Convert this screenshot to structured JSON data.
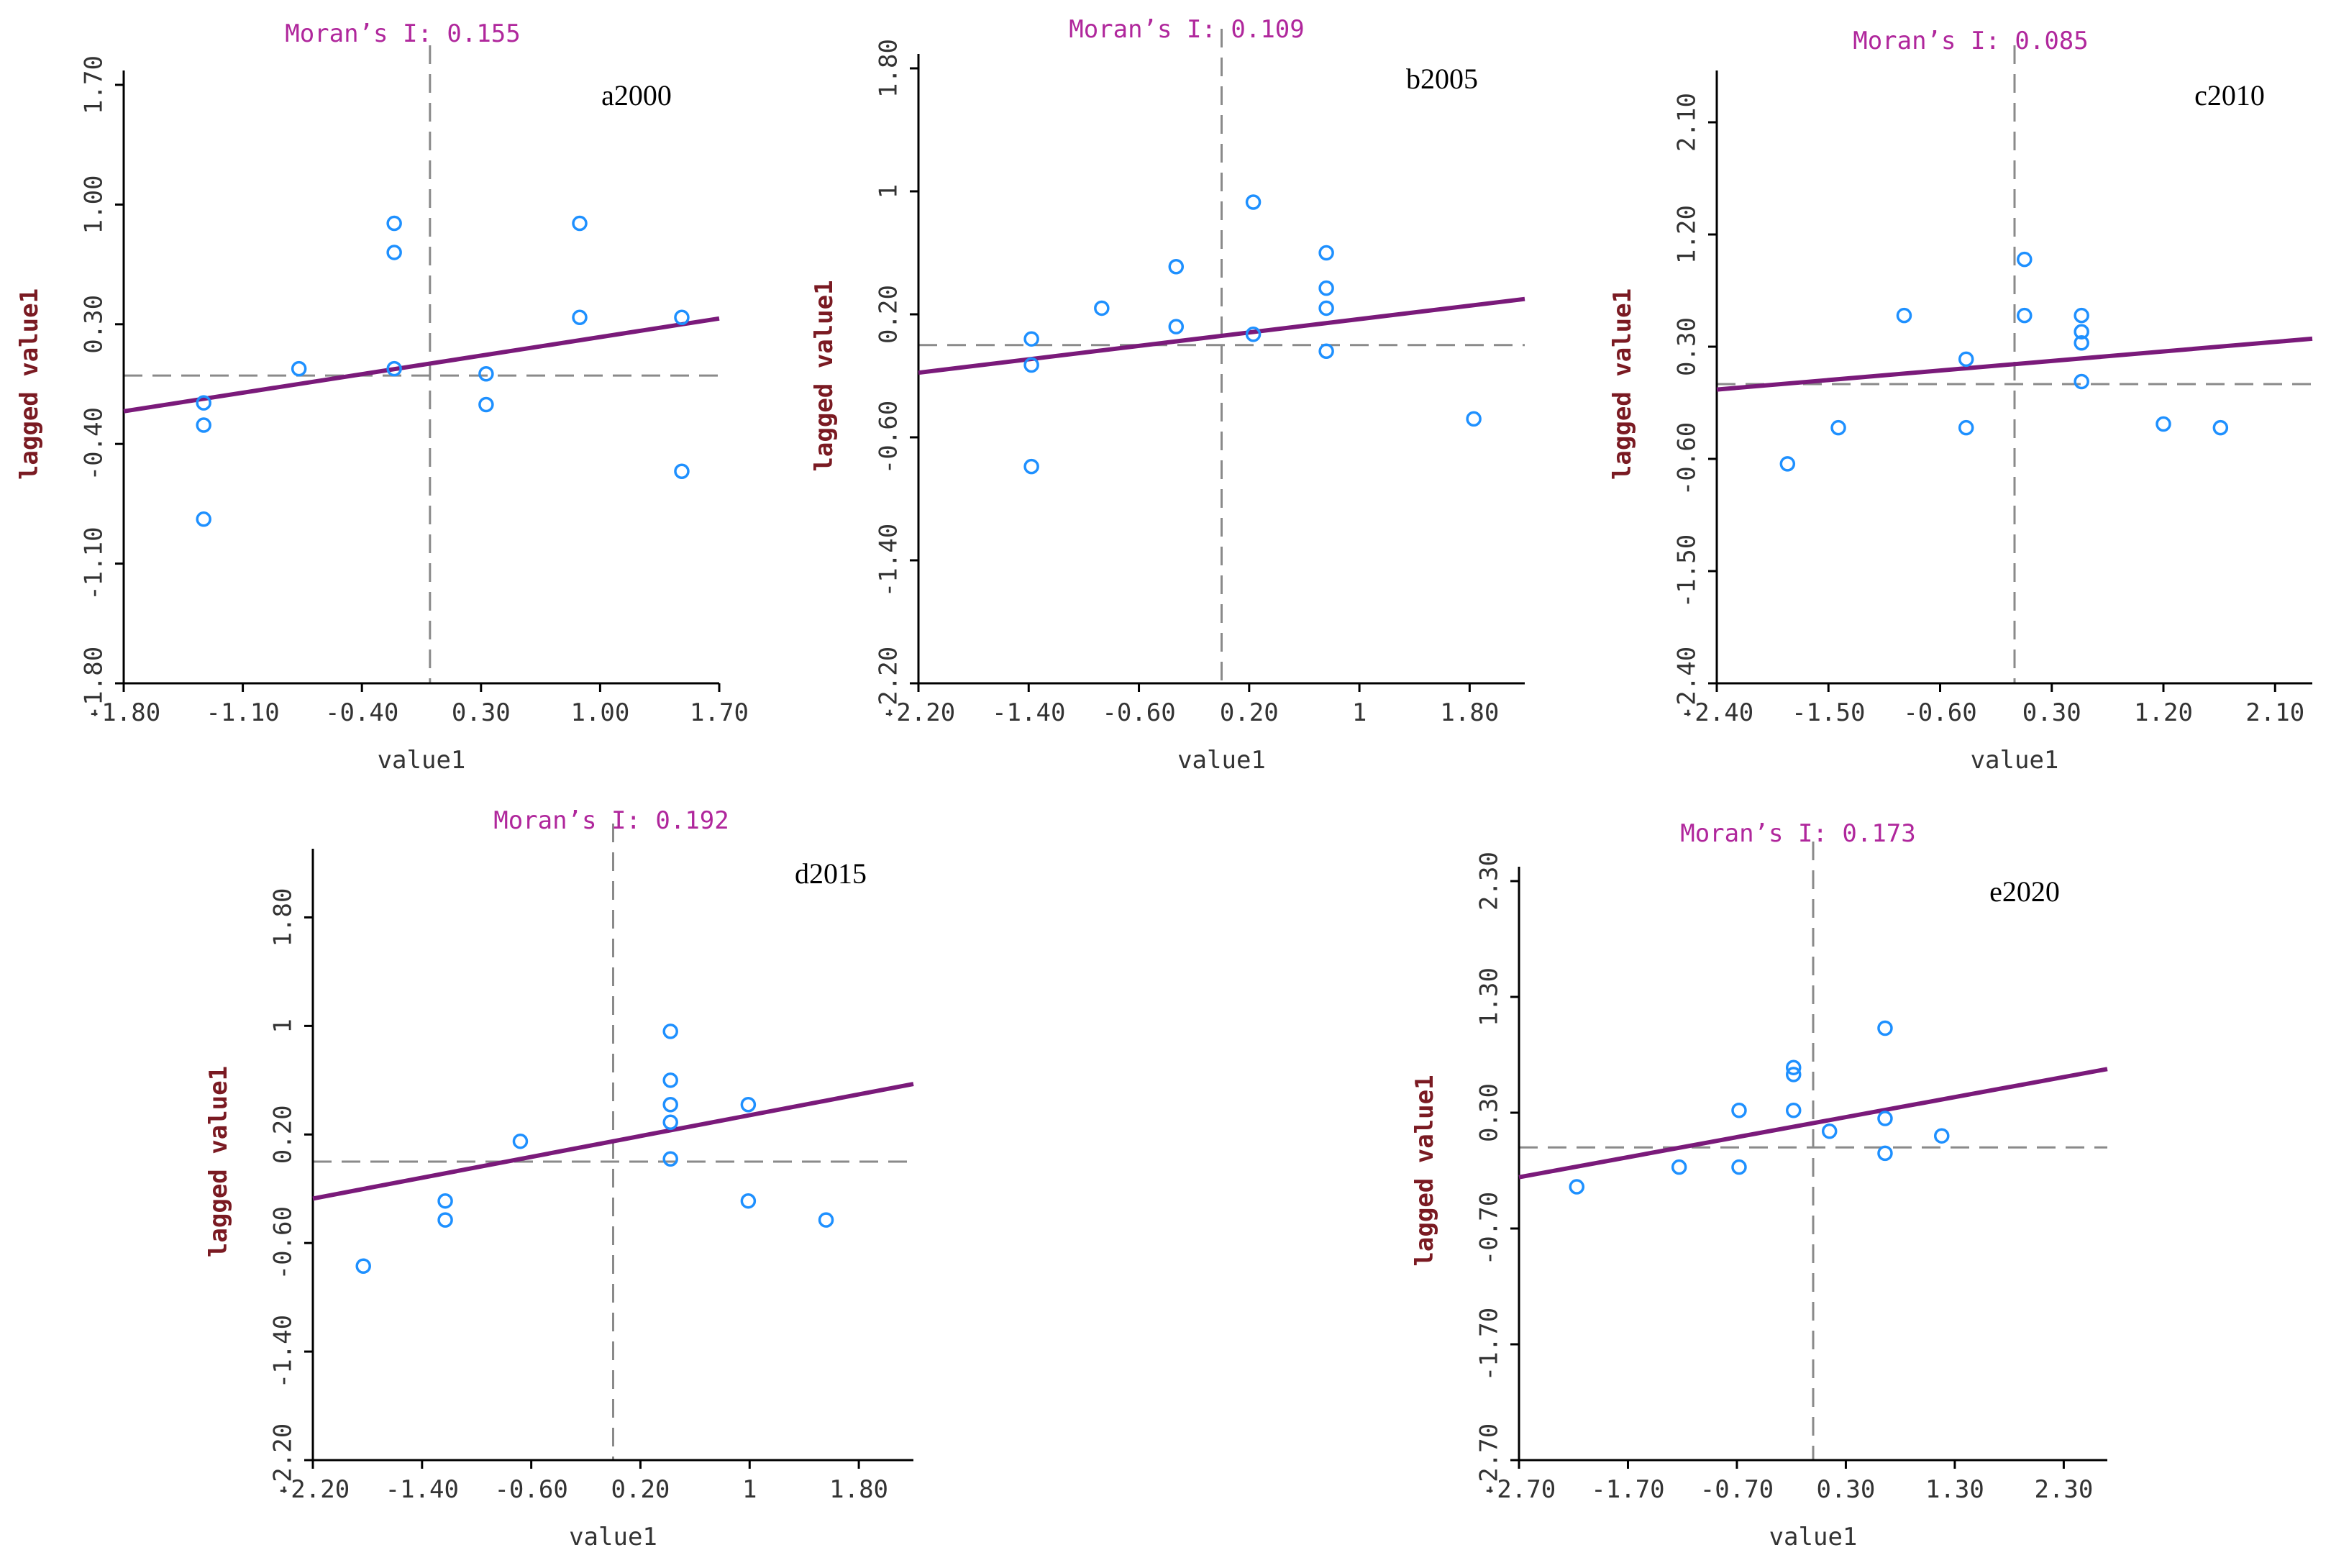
{
  "colors": {
    "point": "#1e90ff",
    "regression": "#7a1a7a",
    "moran": "#b0279c",
    "axis": "#000000",
    "guide": "#8a8a8a",
    "ylabel": "#7a1a22",
    "text": "#333333"
  },
  "chart_data": [
    {
      "type": "scatter",
      "label": "a2000",
      "moran": "Moran’s I: 0.155",
      "xlabel": "value1",
      "ylabel": "lagged value1",
      "xlim": [
        -1.8,
        1.7
      ],
      "ylim": [
        -1.8,
        1.7
      ],
      "xticks": [
        -1.8,
        -1.1,
        -0.4,
        0.3,
        1.0,
        1.7
      ],
      "xtick_labels": [
        "-1.80",
        "-1.10",
        "-0.40",
        "0.30",
        "1.00",
        "1.70"
      ],
      "yticks": [
        -1.8,
        -1.1,
        -0.4,
        0.3,
        1.0,
        1.7
      ],
      "ytick_labels": [
        "-1.80",
        "-1.10",
        "-0.40",
        "0.30",
        "1.00",
        "1.70"
      ],
      "x": [
        -1.33,
        -1.33,
        -1.33,
        -0.77,
        -0.21,
        -0.21,
        -0.21,
        0.33,
        0.33,
        0.88,
        0.88,
        1.48,
        1.48
      ],
      "y": [
        -0.16,
        -0.29,
        -0.84,
        0.04,
        0.89,
        0.72,
        0.04,
        0.01,
        -0.17,
        0.89,
        0.34,
        0.34,
        -0.56
      ],
      "fit_intercept": 0.07,
      "fit_slope": 0.155
    },
    {
      "type": "scatter",
      "label": "b2005",
      "moran": "Moran’s I: 0.109",
      "xlabel": "value1",
      "ylabel": "lagged value1",
      "xlim": [
        -2.2,
        2.2
      ],
      "ylim": [
        -2.2,
        1.8
      ],
      "xticks": [
        -2.2,
        -1.4,
        -0.6,
        0.2,
        1.0,
        1.8
      ],
      "xtick_labels": [
        "-2.20",
        "-1.40",
        "-0.60",
        "0.20",
        "1",
        "1.80"
      ],
      "yticks": [
        -2.2,
        -1.4,
        -0.6,
        0.2,
        1.0,
        1.8
      ],
      "ytick_labels": [
        "-2.20",
        "-1.40",
        "-0.60",
        "0.20",
        "1",
        "1.80"
      ],
      "x": [
        -1.38,
        -1.38,
        -1.38,
        -0.87,
        -0.33,
        -0.33,
        0.23,
        0.23,
        0.76,
        0.76,
        0.76,
        0.76,
        1.83
      ],
      "y": [
        0.04,
        -0.13,
        -0.79,
        0.24,
        0.51,
        0.12,
        0.93,
        0.07,
        0.6,
        0.37,
        0.24,
        -0.04,
        -0.48
      ],
      "fit_intercept": 0.06,
      "fit_slope": 0.109
    },
    {
      "type": "scatter",
      "label": "c2010",
      "moran": "Moran’s I: 0.085",
      "xlabel": "value1",
      "ylabel": "lagged value1",
      "xlim": [
        -2.4,
        2.4
      ],
      "ylim": [
        -2.4,
        2.4
      ],
      "xticks": [
        -2.4,
        -1.5,
        -0.6,
        0.3,
        1.2,
        2.1
      ],
      "xtick_labels": [
        "-2.40",
        "-1.50",
        "-0.60",
        "0.30",
        "1.20",
        "2.10"
      ],
      "yticks": [
        -2.4,
        -1.5,
        -0.6,
        0.3,
        1.2,
        2.1
      ],
      "ytick_labels": [
        "-2.40",
        "-1.50",
        "-0.60",
        "0.30",
        "1.20",
        "2.10"
      ],
      "x": [
        -1.83,
        -1.42,
        -0.89,
        -0.39,
        -0.39,
        0.08,
        0.08,
        0.54,
        0.54,
        0.54,
        0.54,
        1.2,
        1.66
      ],
      "y": [
        -0.64,
        -0.35,
        0.55,
        0.2,
        -0.35,
        1.0,
        0.55,
        0.55,
        0.42,
        0.33,
        0.02,
        -0.32,
        -0.35
      ],
      "fit_intercept": 0.16,
      "fit_slope": 0.085
    },
    {
      "type": "scatter",
      "label": "d2015",
      "moran": "Moran’s I: 0.192",
      "xlabel": "value1",
      "ylabel": "lagged value1",
      "xlim": [
        -2.2,
        2.2
      ],
      "ylim": [
        -2.2,
        2.2
      ],
      "xticks": [
        -2.2,
        -1.4,
        -0.6,
        0.2,
        1.0,
        1.8
      ],
      "xtick_labels": [
        "-2.20",
        "-1.40",
        "-0.60",
        "0.20",
        "1",
        "1.80"
      ],
      "yticks": [
        -2.2,
        -1.4,
        -0.6,
        0.2,
        1.0,
        1.8
      ],
      "ytick_labels": [
        "-2.20",
        "-1.40",
        "-0.60",
        "0.20",
        "1",
        "1.80"
      ],
      "x": [
        -1.83,
        -1.23,
        -1.23,
        -0.68,
        0.42,
        0.42,
        0.42,
        0.42,
        0.42,
        0.99,
        0.99,
        1.56
      ],
      "y": [
        -0.77,
        -0.29,
        -0.43,
        0.15,
        0.96,
        0.6,
        0.42,
        0.29,
        0.02,
        0.42,
        -0.29,
        -0.43
      ],
      "fit_intercept": 0.15,
      "fit_slope": 0.192
    },
    {
      "type": "scatter",
      "label": "e2020",
      "moran": "Moran’s I: 0.173",
      "xlabel": "value1",
      "ylabel": "lagged value1",
      "xlim": [
        -2.7,
        2.7
      ],
      "ylim": [
        -2.7,
        2.3
      ],
      "xticks": [
        -2.7,
        -1.7,
        -0.7,
        0.3,
        1.3,
        2.3
      ],
      "xtick_labels": [
        "-2.70",
        "-1.70",
        "-0.70",
        "0.30",
        "1.30",
        "2.30"
      ],
      "yticks": [
        -2.7,
        -1.7,
        -0.7,
        0.3,
        1.3,
        2.3
      ],
      "ytick_labels": [
        "-2.70",
        "-1.70",
        "-0.70",
        "0.30",
        "1.30",
        "2.30"
      ],
      "x": [
        -2.17,
        -1.23,
        -0.68,
        -0.68,
        -0.18,
        -0.18,
        -0.18,
        0.15,
        0.66,
        0.66,
        0.66,
        1.18
      ],
      "y": [
        -0.34,
        -0.17,
        -0.17,
        0.32,
        0.69,
        0.63,
        0.32,
        0.14,
        1.03,
        0.25,
        -0.05,
        0.1
      ],
      "fit_intercept": 0.21,
      "fit_slope": 0.173
    }
  ]
}
